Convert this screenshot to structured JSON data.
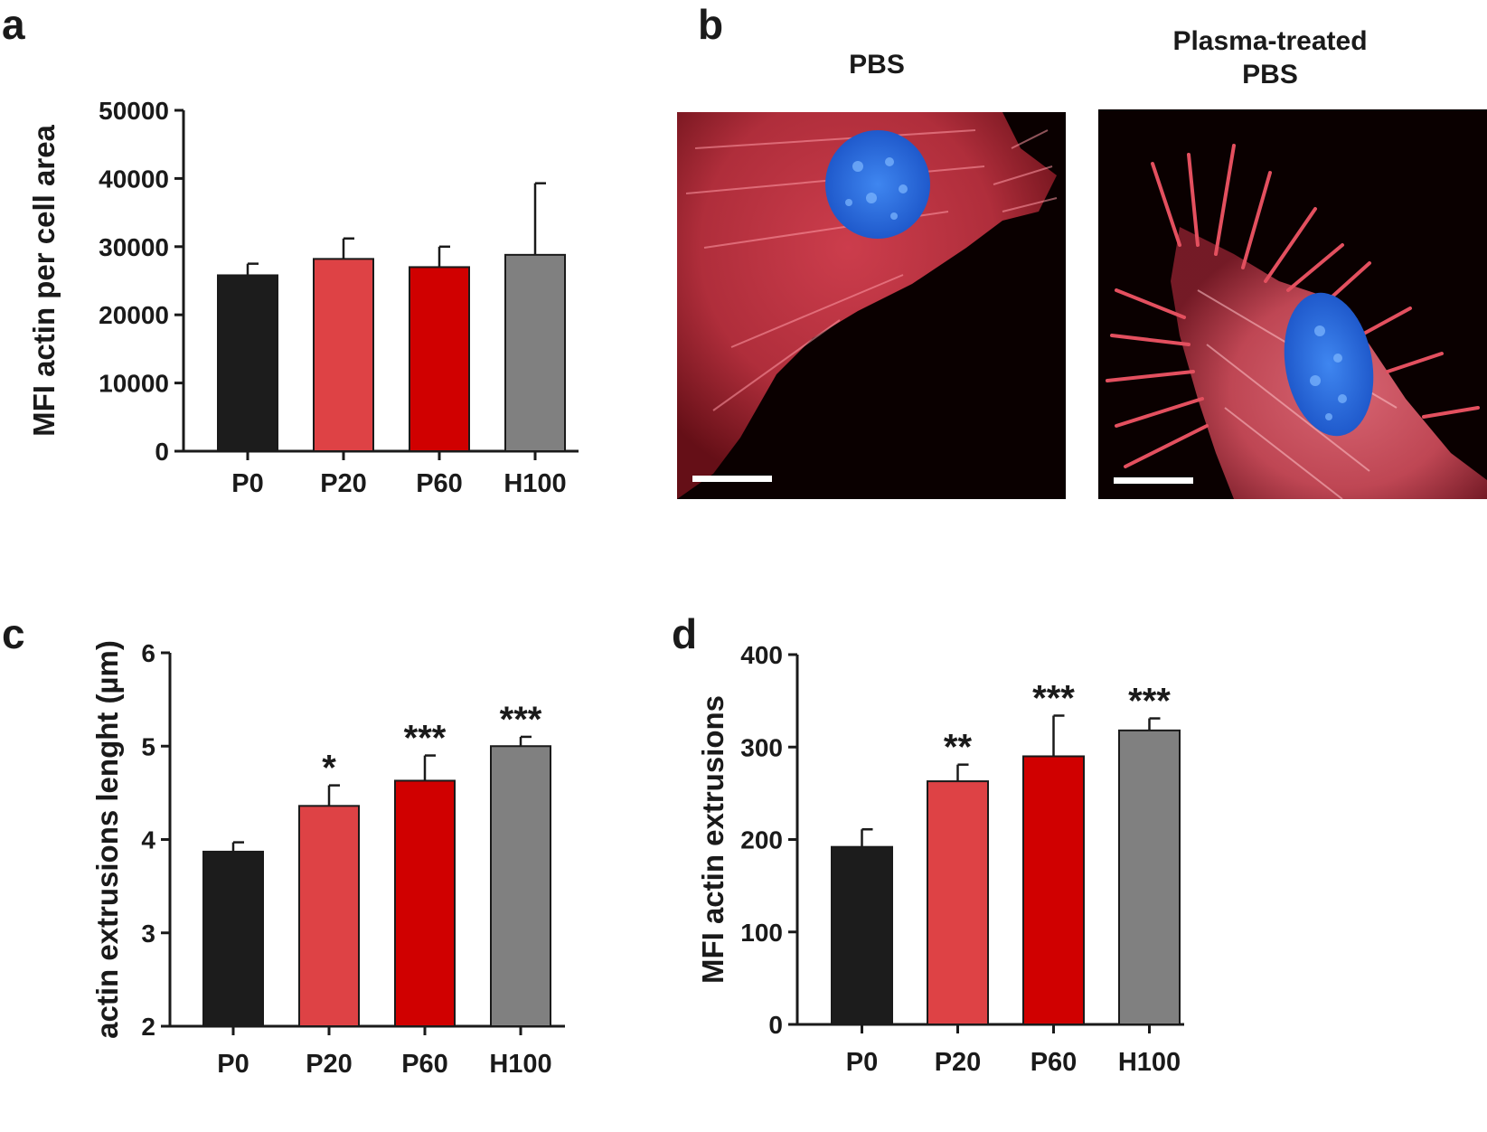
{
  "panels": {
    "a": "a",
    "b": "b",
    "c": "c",
    "d": "d"
  },
  "colors": {
    "P0": "#1c1c1c",
    "P20": "#de4245",
    "P60": "#d00000",
    "H100": "#808080",
    "actin": "#e03c48",
    "nucleus": "#2f6fe0"
  },
  "microscopy": {
    "left_title": "PBS",
    "right_title_line1": "Plasma-treated",
    "right_title_line2": "PBS"
  },
  "chart_data": [
    {
      "id": "a",
      "type": "bar",
      "categories": [
        "P0",
        "P20",
        "P60",
        "H100"
      ],
      "values": [
        25800,
        28200,
        27000,
        28800
      ],
      "errors": [
        1700,
        3000,
        3000,
        10500
      ],
      "significance": [
        "",
        "",
        "",
        ""
      ],
      "ylabel": "MFI actin per cell area",
      "ylim": [
        0,
        50000
      ],
      "yticks": [
        "0",
        "10000",
        "20000",
        "30000",
        "40000",
        "50000"
      ]
    },
    {
      "id": "c",
      "type": "bar",
      "categories": [
        "P0",
        "P20",
        "P60",
        "H100"
      ],
      "values": [
        3.87,
        4.36,
        4.63,
        5.0
      ],
      "errors": [
        0.1,
        0.22,
        0.27,
        0.1
      ],
      "significance": [
        "",
        "*",
        "***",
        "***"
      ],
      "ylabel": "actin extrusions lenght (µm)",
      "ylim": [
        2,
        6
      ],
      "yticks": [
        "2",
        "3",
        "4",
        "5",
        "6"
      ]
    },
    {
      "id": "d",
      "type": "bar",
      "categories": [
        "P0",
        "P20",
        "P60",
        "H100"
      ],
      "values": [
        192,
        263,
        290,
        318
      ],
      "errors": [
        19,
        18,
        44,
        13
      ],
      "significance": [
        "",
        "**",
        "***",
        "***"
      ],
      "ylabel": "MFI actin extrusions",
      "ylim": [
        0,
        400
      ],
      "yticks": [
        "0",
        "100",
        "200",
        "300",
        "400"
      ]
    }
  ]
}
